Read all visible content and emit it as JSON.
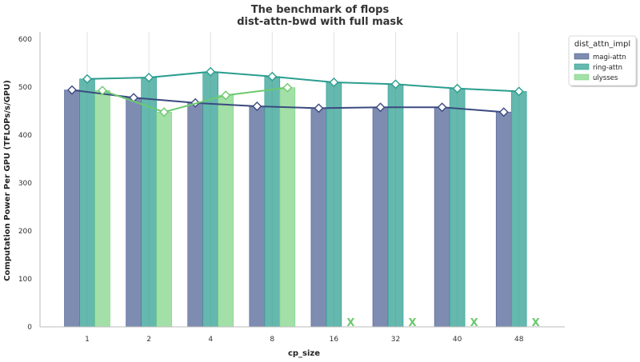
{
  "chart_data": {
    "type": "bar",
    "title": "The benchmark of flops",
    "subtitle": "dist-attn-bwd with full mask",
    "xlabel": "cp_size",
    "ylabel": "Computation Power Per GPU (TFLOPs/s/GPU)",
    "categories": [
      "1",
      "2",
      "4",
      "8",
      "16",
      "32",
      "40",
      "48"
    ],
    "ylim": [
      0,
      600
    ],
    "yticks": [
      0,
      100,
      200,
      300,
      400,
      500,
      600
    ],
    "grid": "vertical",
    "legend": {
      "title": "dist_attn_impl",
      "placement": "top-right"
    },
    "missing_marker": "X",
    "series": [
      {
        "name": "magi-attn",
        "color": "#4c5f93",
        "line_color": "#3b4a80",
        "values": [
          494,
          478,
          467,
          460,
          456,
          458,
          458,
          448
        ]
      },
      {
        "name": "ring-attn",
        "color": "#2a9d8f",
        "line_color": "#2a9d8f",
        "values": [
          517,
          520,
          532,
          522,
          510,
          506,
          497,
          491
        ]
      },
      {
        "name": "ulysses",
        "color": "#7ed485",
        "line_color": "#6cc96f",
        "values": [
          493,
          448,
          483,
          499,
          null,
          null,
          null,
          null
        ]
      }
    ]
  }
}
